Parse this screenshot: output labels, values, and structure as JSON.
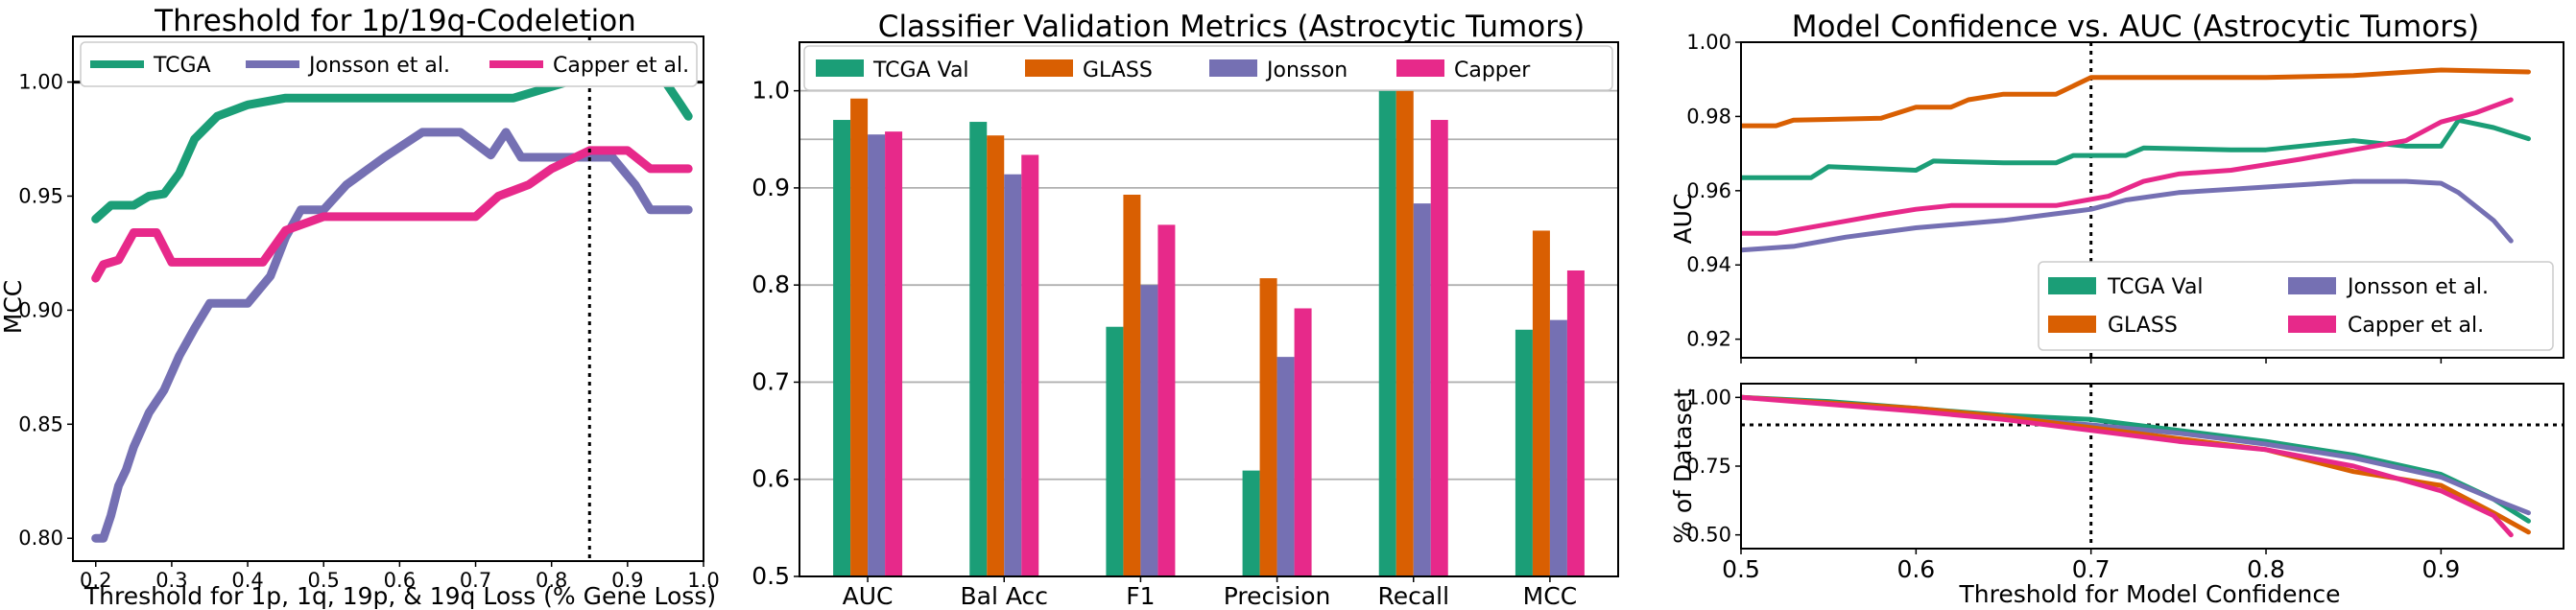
{
  "colors": {
    "tcga": "#1b9e77",
    "glass": "#d95f02",
    "jonsson": "#7570b3",
    "capper": "#e7298a",
    "grid": "#b0b0b0",
    "axis": "#000000"
  },
  "chart_data": [
    {
      "type": "line",
      "title": "Threshold for 1p/19q-Codeletion",
      "xlabel": "Threshold for 1p, 1q, 19p, & 19q Loss (% Gene Loss)",
      "ylabel": "MCC",
      "xlim": [
        0.17,
        1.0
      ],
      "ylim": [
        0.79,
        1.02
      ],
      "xticks": [
        "0.2",
        "0.3",
        "0.4",
        "0.5",
        "0.6",
        "0.7",
        "0.8",
        "0.9",
        "1.0"
      ],
      "yticks": [
        "0.80",
        "0.85",
        "0.90",
        "0.95",
        "1.00"
      ],
      "legend_position": "top",
      "reference_lines": {
        "horizontal": 1.0,
        "vertical": 0.85
      },
      "series": [
        {
          "name": "TCGA",
          "color_key": "tcga",
          "points": [
            [
              0.2,
              0.94
            ],
            [
              0.22,
              0.946
            ],
            [
              0.25,
              0.946
            ],
            [
              0.27,
              0.95
            ],
            [
              0.29,
              0.951
            ],
            [
              0.31,
              0.96
            ],
            [
              0.33,
              0.975
            ],
            [
              0.36,
              0.985
            ],
            [
              0.4,
              0.99
            ],
            [
              0.45,
              0.993
            ],
            [
              0.55,
              0.993
            ],
            [
              0.65,
              0.993
            ],
            [
              0.75,
              0.993
            ],
            [
              0.78,
              0.996
            ],
            [
              0.82,
              1.0
            ],
            [
              0.9,
              1.0
            ],
            [
              0.95,
              1.0
            ],
            [
              0.97,
              0.99
            ],
            [
              0.98,
              0.985
            ]
          ]
        },
        {
          "name": "Jonsson et al.",
          "color_key": "jonsson",
          "points": [
            [
              0.2,
              0.8
            ],
            [
              0.21,
              0.8
            ],
            [
              0.22,
              0.81
            ],
            [
              0.23,
              0.823
            ],
            [
              0.24,
              0.83
            ],
            [
              0.25,
              0.84
            ],
            [
              0.27,
              0.855
            ],
            [
              0.29,
              0.865
            ],
            [
              0.31,
              0.88
            ],
            [
              0.33,
              0.892
            ],
            [
              0.35,
              0.903
            ],
            [
              0.37,
              0.903
            ],
            [
              0.4,
              0.903
            ],
            [
              0.43,
              0.915
            ],
            [
              0.45,
              0.932
            ],
            [
              0.47,
              0.944
            ],
            [
              0.5,
              0.944
            ],
            [
              0.53,
              0.955
            ],
            [
              0.58,
              0.967
            ],
            [
              0.63,
              0.978
            ],
            [
              0.68,
              0.978
            ],
            [
              0.72,
              0.968
            ],
            [
              0.74,
              0.978
            ],
            [
              0.76,
              0.967
            ],
            [
              0.82,
              0.967
            ],
            [
              0.85,
              0.967
            ],
            [
              0.88,
              0.967
            ],
            [
              0.91,
              0.955
            ],
            [
              0.93,
              0.944
            ],
            [
              0.98,
              0.944
            ]
          ]
        },
        {
          "name": "Capper et al.",
          "color_key": "capper",
          "points": [
            [
              0.2,
              0.914
            ],
            [
              0.21,
              0.92
            ],
            [
              0.23,
              0.922
            ],
            [
              0.25,
              0.934
            ],
            [
              0.28,
              0.934
            ],
            [
              0.3,
              0.921
            ],
            [
              0.34,
              0.921
            ],
            [
              0.38,
              0.921
            ],
            [
              0.42,
              0.921
            ],
            [
              0.45,
              0.935
            ],
            [
              0.5,
              0.941
            ],
            [
              0.55,
              0.941
            ],
            [
              0.6,
              0.941
            ],
            [
              0.7,
              0.941
            ],
            [
              0.73,
              0.95
            ],
            [
              0.77,
              0.955
            ],
            [
              0.8,
              0.962
            ],
            [
              0.85,
              0.97
            ],
            [
              0.9,
              0.97
            ],
            [
              0.93,
              0.962
            ],
            [
              0.98,
              0.962
            ]
          ]
        }
      ]
    },
    {
      "type": "bar",
      "title": "Classifier Validation Metrics (Astrocytic Tumors)",
      "xlabel": "",
      "ylabel": "",
      "ylim": [
        0.5,
        1.05
      ],
      "yticks": [
        "0.5",
        "0.6",
        "0.7",
        "0.8",
        "0.9",
        "1.0"
      ],
      "grid": true,
      "legend_position": "top",
      "reference_lines": {
        "horizontal": 0.95
      },
      "categories": [
        "AUC",
        "Bal Acc",
        "F1",
        "Precision",
        "Recall",
        "MCC"
      ],
      "series": [
        {
          "name": "TCGA Val",
          "color_key": "tcga",
          "values": [
            0.97,
            0.968,
            0.757,
            0.609,
            1.0,
            0.754
          ]
        },
        {
          "name": "GLASS",
          "color_key": "glass",
          "values": [
            0.992,
            0.954,
            0.893,
            0.807,
            1.0,
            0.856
          ]
        },
        {
          "name": "Jonsson",
          "color_key": "jonsson",
          "values": [
            0.955,
            0.914,
            0.8,
            0.726,
            0.884,
            0.764
          ]
        },
        {
          "name": "Capper",
          "color_key": "capper",
          "values": [
            0.958,
            0.934,
            0.862,
            0.776,
            0.97,
            0.815
          ]
        }
      ]
    },
    {
      "type": "line",
      "title": "Model Confidence vs. AUC (Astrocytic Tumors)",
      "xlabel": "",
      "ylabel": "AUC",
      "xlim": [
        0.5,
        0.97
      ],
      "ylim": [
        0.915,
        1.0
      ],
      "yticks": [
        "0.92",
        "0.94",
        "0.96",
        "0.98",
        "1.00"
      ],
      "legend_position": "lower right",
      "reference_lines": {
        "vertical": 0.7
      },
      "series": [
        {
          "name": "TCGA Val",
          "color_key": "tcga",
          "points": [
            [
              0.5,
              0.9635
            ],
            [
              0.54,
              0.9635
            ],
            [
              0.55,
              0.9665
            ],
            [
              0.6,
              0.9655
            ],
            [
              0.61,
              0.968
            ],
            [
              0.65,
              0.9675
            ],
            [
              0.68,
              0.9675
            ],
            [
              0.69,
              0.9695
            ],
            [
              0.72,
              0.9695
            ],
            [
              0.73,
              0.9715
            ],
            [
              0.78,
              0.971
            ],
            [
              0.8,
              0.971
            ],
            [
              0.83,
              0.9725
            ],
            [
              0.85,
              0.9735
            ],
            [
              0.88,
              0.972
            ],
            [
              0.9,
              0.972
            ],
            [
              0.91,
              0.979
            ],
            [
              0.93,
              0.977
            ],
            [
              0.95,
              0.974
            ]
          ]
        },
        {
          "name": "GLASS",
          "color_key": "glass",
          "points": [
            [
              0.5,
              0.9775
            ],
            [
              0.52,
              0.9775
            ],
            [
              0.53,
              0.979
            ],
            [
              0.58,
              0.9795
            ],
            [
              0.6,
              0.9825
            ],
            [
              0.62,
              0.9825
            ],
            [
              0.63,
              0.9845
            ],
            [
              0.65,
              0.986
            ],
            [
              0.68,
              0.986
            ],
            [
              0.7,
              0.9905
            ],
            [
              0.75,
              0.9905
            ],
            [
              0.8,
              0.9905
            ],
            [
              0.85,
              0.991
            ],
            [
              0.9,
              0.9925
            ],
            [
              0.95,
              0.992
            ]
          ]
        },
        {
          "name": "Jonsson et al.",
          "color_key": "jonsson",
          "points": [
            [
              0.5,
              0.944
            ],
            [
              0.53,
              0.945
            ],
            [
              0.56,
              0.9475
            ],
            [
              0.6,
              0.95
            ],
            [
              0.65,
              0.952
            ],
            [
              0.7,
              0.955
            ],
            [
              0.72,
              0.9575
            ],
            [
              0.75,
              0.9595
            ],
            [
              0.8,
              0.961
            ],
            [
              0.85,
              0.9625
            ],
            [
              0.88,
              0.9625
            ],
            [
              0.9,
              0.962
            ],
            [
              0.91,
              0.9595
            ],
            [
              0.93,
              0.952
            ],
            [
              0.94,
              0.9465
            ]
          ]
        },
        {
          "name": "Capper et al.",
          "color_key": "capper",
          "points": [
            [
              0.5,
              0.9485
            ],
            [
              0.52,
              0.9485
            ],
            [
              0.55,
              0.951
            ],
            [
              0.58,
              0.9535
            ],
            [
              0.6,
              0.955
            ],
            [
              0.62,
              0.956
            ],
            [
              0.68,
              0.956
            ],
            [
              0.71,
              0.9585
            ],
            [
              0.73,
              0.9625
            ],
            [
              0.75,
              0.9645
            ],
            [
              0.78,
              0.9655
            ],
            [
              0.82,
              0.9685
            ],
            [
              0.85,
              0.971
            ],
            [
              0.88,
              0.9735
            ],
            [
              0.9,
              0.9785
            ],
            [
              0.92,
              0.981
            ],
            [
              0.94,
              0.9845
            ]
          ]
        }
      ]
    },
    {
      "type": "line",
      "title": "",
      "xlabel": "Threshold for Model Confidence",
      "ylabel": "% of Dataset",
      "xlim": [
        0.5,
        0.97
      ],
      "ylim": [
        0.45,
        1.05
      ],
      "xticks": [
        "0.5",
        "0.6",
        "0.7",
        "0.8",
        "0.9"
      ],
      "yticks": [
        "0.50",
        "0.75",
        "1.00"
      ],
      "reference_lines": {
        "vertical": 0.7,
        "horizontal": 0.9
      },
      "series": [
        {
          "name": "TCGA Val",
          "color_key": "tcga",
          "points": [
            [
              0.5,
              1.0
            ],
            [
              0.55,
              0.985
            ],
            [
              0.6,
              0.96
            ],
            [
              0.65,
              0.935
            ],
            [
              0.7,
              0.92
            ],
            [
              0.75,
              0.88
            ],
            [
              0.8,
              0.84
            ],
            [
              0.85,
              0.79
            ],
            [
              0.9,
              0.72
            ],
            [
              0.93,
              0.63
            ],
            [
              0.95,
              0.55
            ]
          ]
        },
        {
          "name": "GLASS",
          "color_key": "glass",
          "points": [
            [
              0.5,
              1.0
            ],
            [
              0.55,
              0.98
            ],
            [
              0.6,
              0.96
            ],
            [
              0.65,
              0.93
            ],
            [
              0.7,
              0.89
            ],
            [
              0.75,
              0.85
            ],
            [
              0.8,
              0.81
            ],
            [
              0.85,
              0.73
            ],
            [
              0.9,
              0.68
            ],
            [
              0.93,
              0.58
            ],
            [
              0.95,
              0.51
            ]
          ]
        },
        {
          "name": "Jonsson et al.",
          "color_key": "jonsson",
          "points": [
            [
              0.5,
              1.0
            ],
            [
              0.55,
              0.98
            ],
            [
              0.6,
              0.955
            ],
            [
              0.65,
              0.925
            ],
            [
              0.7,
              0.9
            ],
            [
              0.75,
              0.87
            ],
            [
              0.8,
              0.83
            ],
            [
              0.85,
              0.78
            ],
            [
              0.9,
              0.71
            ],
            [
              0.93,
              0.63
            ],
            [
              0.95,
              0.58
            ]
          ]
        },
        {
          "name": "Capper et al.",
          "color_key": "capper",
          "points": [
            [
              0.5,
              1.0
            ],
            [
              0.55,
              0.975
            ],
            [
              0.6,
              0.95
            ],
            [
              0.65,
              0.92
            ],
            [
              0.7,
              0.88
            ],
            [
              0.75,
              0.84
            ],
            [
              0.8,
              0.81
            ],
            [
              0.85,
              0.75
            ],
            [
              0.9,
              0.66
            ],
            [
              0.93,
              0.57
            ],
            [
              0.94,
              0.5
            ]
          ]
        }
      ]
    }
  ]
}
